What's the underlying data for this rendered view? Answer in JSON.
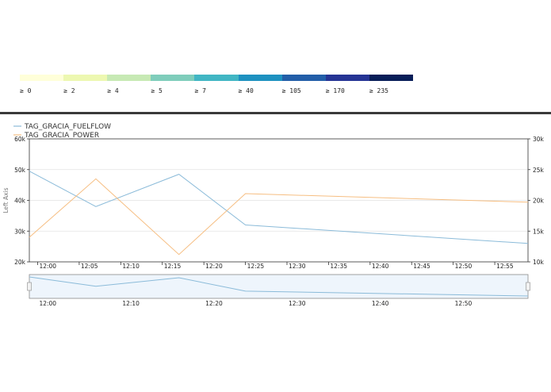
{
  "color_scale": {
    "colors": [
      "#ffffd9",
      "#edf8b1",
      "#c7e9b4",
      "#7fcdbb",
      "#41b6c4",
      "#1d91c0",
      "#225ea8",
      "#253494",
      "#081d58"
    ],
    "labels": [
      "≥ 0",
      "≥ 2",
      "≥ 4",
      "≥ 5",
      "≥ 7",
      "≥ 40",
      "≥ 105",
      "≥ 170",
      "≥ 235"
    ]
  },
  "chart_data": {
    "type": "line",
    "title": "",
    "legend": {
      "placement": "top-left",
      "entries": [
        "TAG_GRACIA_FUELFLOW",
        "TAG_GRACIA_POWER"
      ]
    },
    "x_axis": {
      "type": "time",
      "range": [
        "11:59",
        "12:59"
      ],
      "tick_labels": [
        "12:00",
        "12:05",
        "12:10",
        "12:15",
        "12:20",
        "12:25",
        "12:30",
        "12:35",
        "12:40",
        "12:45",
        "12:50",
        "12:55"
      ]
    },
    "y_axis_left": {
      "label": "Left Axis",
      "range": [
        20000,
        60000
      ],
      "tick_labels": [
        "60k",
        "50k",
        "40k",
        "30k",
        "20k"
      ]
    },
    "y_axis_right": {
      "range": [
        10000,
        30000
      ],
      "tick_labels": [
        "30k",
        "25k",
        "20k",
        "15k",
        "10k"
      ]
    },
    "grid": true,
    "series": [
      {
        "name": "TAG_GRACIA_FUELFLOW",
        "axis": "left",
        "color": "#8bbbd9",
        "x": [
          "11:59",
          "12:07",
          "12:17",
          "12:25",
          "12:59"
        ],
        "values": [
          49500,
          38000,
          48500,
          32000,
          26000
        ]
      },
      {
        "name": "TAG_GRACIA_POWER",
        "axis": "right",
        "color": "#f6be82",
        "x": [
          "11:59",
          "12:07",
          "12:17",
          "12:25",
          "12:59"
        ],
        "values": [
          14000,
          23500,
          11200,
          21100,
          19700
        ]
      }
    ],
    "navigator": {
      "tick_labels": [
        "12:00",
        "12:10",
        "12:20",
        "12:30",
        "12:40",
        "12:50"
      ]
    }
  }
}
